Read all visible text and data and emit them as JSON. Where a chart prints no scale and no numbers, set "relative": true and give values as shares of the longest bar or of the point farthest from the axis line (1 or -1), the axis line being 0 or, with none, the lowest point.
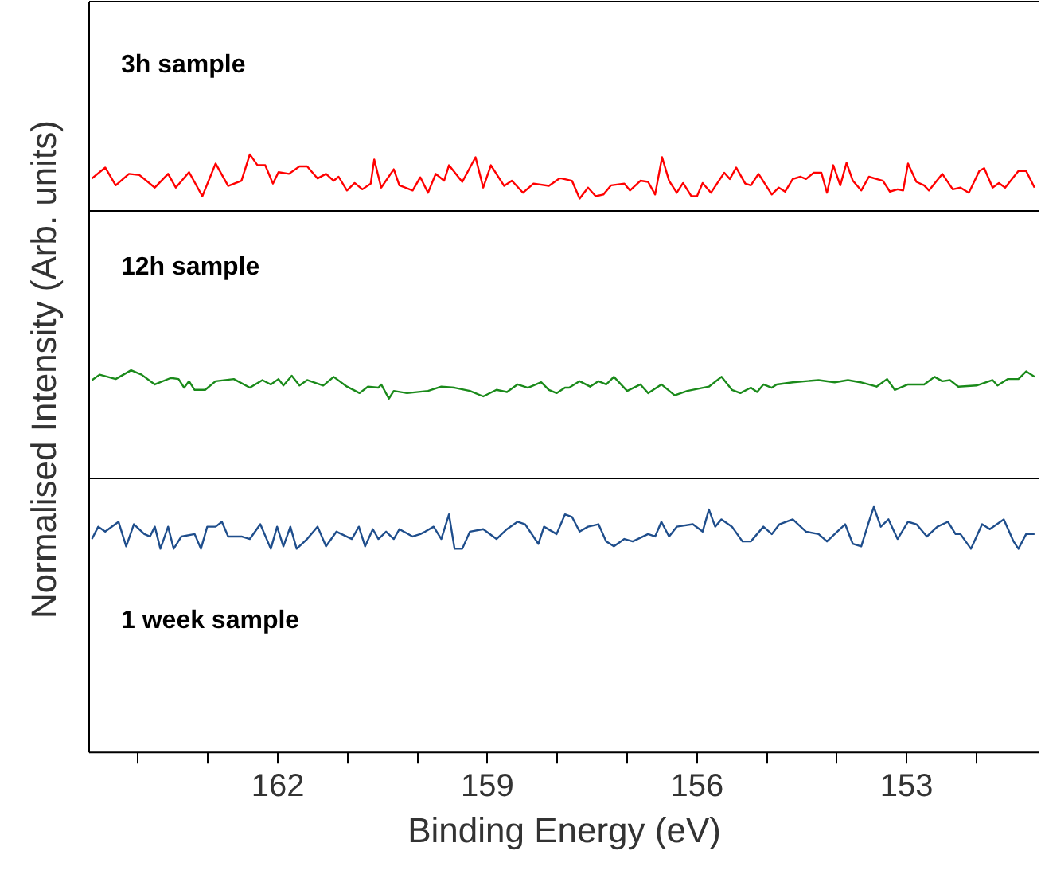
{
  "chart_data": [
    {
      "type": "line",
      "relative": true,
      "tick_labels": false,
      "ylabel": "Normalised Intensity (Arb. units)",
      "xlim": [
        164.7,
        151.1
      ],
      "series": [
        {
          "name": "3h sample",
          "color": "#ff0000",
          "x": [
            164.66,
            164.47,
            164.32,
            164.13,
            163.98,
            163.76,
            163.57,
            163.46,
            163.27,
            163.08,
            162.89,
            162.71,
            162.52,
            162.4,
            162.29,
            162.18,
            162.07,
            161.99,
            161.84,
            161.69,
            161.58,
            161.43,
            161.31,
            161.2,
            161.13,
            161.01,
            160.9,
            160.79,
            160.67,
            160.62,
            160.52,
            160.34,
            160.26,
            160.07,
            159.96,
            159.85,
            159.74,
            159.62,
            159.55,
            159.36,
            159.17,
            159.06,
            158.95,
            158.76,
            158.65,
            158.49,
            158.34,
            158.12,
            157.97,
            157.94,
            157.79,
            157.68,
            157.56,
            157.45,
            157.34,
            157.23,
            157.04,
            156.96,
            156.81,
            156.7,
            156.6,
            156.5,
            156.4,
            156.29,
            156.2,
            156.08,
            156.0,
            155.92,
            155.8,
            155.61,
            155.53,
            155.44,
            155.31,
            155.23,
            155.12,
            154.93,
            154.83,
            154.74,
            154.63,
            154.52,
            154.44,
            154.33,
            154.22,
            154.14,
            154.05,
            153.95,
            153.86,
            153.77,
            153.65,
            153.54,
            153.43,
            153.34,
            153.24,
            153.13,
            153.05,
            152.98,
            152.86,
            152.75,
            152.68,
            152.49,
            152.34,
            152.23,
            152.11,
            151.96,
            151.89,
            151.77,
            151.68,
            151.59,
            151.4,
            151.29,
            151.17
          ],
          "values": [
            0.58,
            0.77,
            0.46,
            0.66,
            0.64,
            0.42,
            0.66,
            0.42,
            0.69,
            0.27,
            0.84,
            0.45,
            0.54,
            1,
            0.81,
            0.81,
            0.49,
            0.69,
            0.66,
            0.79,
            0.79,
            0.58,
            0.66,
            0.54,
            0.61,
            0.37,
            0.5,
            0.39,
            0.49,
            0.91,
            0.42,
            0.74,
            0.46,
            0.37,
            0.6,
            0.33,
            0.66,
            0.54,
            0.81,
            0.52,
            0.95,
            0.42,
            0.81,
            0.45,
            0.54,
            0.33,
            0.49,
            0.45,
            0.58,
            0.58,
            0.54,
            0.23,
            0.42,
            0.27,
            0.3,
            0.46,
            0.49,
            0.37,
            0.54,
            0.52,
            0.3,
            0.95,
            0.54,
            0.33,
            0.5,
            0.27,
            0.27,
            0.5,
            0.33,
            0.68,
            0.57,
            0.77,
            0.49,
            0.46,
            0.66,
            0.3,
            0.42,
            0.35,
            0.57,
            0.61,
            0.57,
            0.68,
            0.68,
            0.33,
            0.81,
            0.46,
            0.85,
            0.54,
            0.37,
            0.61,
            0.57,
            0.54,
            0.35,
            0.39,
            0.37,
            0.84,
            0.52,
            0.46,
            0.37,
            0.66,
            0.39,
            0.42,
            0.33,
            0.71,
            0.76,
            0.42,
            0.5,
            0.42,
            0.71,
            0.71,
            0.42
          ]
        }
      ]
    },
    {
      "type": "line",
      "relative": true,
      "tick_labels": false,
      "xlim": [
        164.7,
        151.1
      ],
      "series": [
        {
          "name": "12h sample",
          "color": "#1a8a1a",
          "x": [
            164.66,
            164.55,
            164.32,
            164.1,
            163.95,
            163.76,
            163.53,
            163.42,
            163.34,
            163.27,
            163.19,
            163.04,
            162.89,
            162.63,
            162.4,
            162.22,
            162.1,
            161.99,
            161.92,
            161.8,
            161.69,
            161.58,
            161.35,
            161.2,
            161.01,
            160.83,
            160.71,
            160.56,
            160.52,
            160.41,
            160.34,
            160.15,
            159.85,
            159.66,
            159.47,
            159.25,
            159.06,
            158.87,
            158.72,
            158.57,
            158.42,
            158.23,
            158.12,
            158.01,
            157.89,
            157.83,
            157.68,
            157.53,
            157.41,
            157.3,
            157.19,
            157.0,
            156.81,
            156.7,
            156.51,
            156.32,
            156.14,
            155.83,
            155.65,
            155.5,
            155.38,
            155.23,
            155.14,
            155.05,
            154.93,
            154.86,
            154.63,
            154.26,
            154.03,
            153.84,
            153.66,
            153.43,
            153.28,
            153.17,
            152.98,
            152.75,
            152.6,
            152.49,
            152.38,
            152.26,
            152.0,
            151.77,
            151.7,
            151.55,
            151.4,
            151.29,
            151.17
          ],
          "values": [
            0.91,
            0.96,
            0.92,
            1,
            0.96,
            0.87,
            0.93,
            0.92,
            0.84,
            0.9,
            0.82,
            0.82,
            0.9,
            0.92,
            0.84,
            0.91,
            0.87,
            0.92,
            0.86,
            0.95,
            0.86,
            0.91,
            0.86,
            0.94,
            0.85,
            0.79,
            0.85,
            0.84,
            0.87,
            0.74,
            0.81,
            0.79,
            0.81,
            0.85,
            0.84,
            0.81,
            0.76,
            0.82,
            0.8,
            0.87,
            0.84,
            0.89,
            0.82,
            0.79,
            0.84,
            0.84,
            0.9,
            0.85,
            0.9,
            0.87,
            0.94,
            0.81,
            0.87,
            0.79,
            0.87,
            0.77,
            0.81,
            0.85,
            0.94,
            0.82,
            0.79,
            0.84,
            0.8,
            0.87,
            0.84,
            0.87,
            0.89,
            0.91,
            0.89,
            0.91,
            0.89,
            0.85,
            0.92,
            0.82,
            0.87,
            0.87,
            0.94,
            0.9,
            0.91,
            0.85,
            0.86,
            0.91,
            0.86,
            0.92,
            0.92,
            0.99,
            0.94
          ]
        }
      ]
    },
    {
      "type": "line",
      "relative": true,
      "tick_labels": "x",
      "xlabel": "Binding Energy (eV)",
      "xlim": [
        164.7,
        151.1
      ],
      "xticks": [
        {
          "value": 164,
          "label": null
        },
        {
          "value": 163,
          "label": null
        },
        162,
        {
          "value": 161,
          "label": null
        },
        {
          "value": 160,
          "label": null
        },
        159,
        {
          "value": 158,
          "label": null
        },
        {
          "value": 157,
          "label": null
        },
        156,
        {
          "value": 155,
          "label": null
        },
        {
          "value": 154,
          "label": null
        },
        153,
        {
          "value": 152,
          "label": null
        }
      ],
      "series": [
        {
          "name": "1 week sample",
          "color": "#1f4e8c",
          "x": [
            164.66,
            164.57,
            164.47,
            164.28,
            164.17,
            164.06,
            163.91,
            163.83,
            163.76,
            163.68,
            163.57,
            163.49,
            163.38,
            163.19,
            163.1,
            163.01,
            162.89,
            162.8,
            162.71,
            162.52,
            162.4,
            162.25,
            162.1,
            162.01,
            161.92,
            161.82,
            161.73,
            161.58,
            161.43,
            161.31,
            161.16,
            160.94,
            160.84,
            160.75,
            160.64,
            160.56,
            160.45,
            160.34,
            160.26,
            160.07,
            159.96,
            159.89,
            159.77,
            159.66,
            159.55,
            159.47,
            159.36,
            159.25,
            159.06,
            158.87,
            158.72,
            158.57,
            158.46,
            158.27,
            158.19,
            158.01,
            157.89,
            157.79,
            157.68,
            157.56,
            157.41,
            157.3,
            157.19,
            157.04,
            156.92,
            156.7,
            156.6,
            156.51,
            156.4,
            156.29,
            156.06,
            155.92,
            155.83,
            155.74,
            155.65,
            155.5,
            155.35,
            155.23,
            155.05,
            154.93,
            154.82,
            154.63,
            154.44,
            154.26,
            154.14,
            154.03,
            153.88,
            153.77,
            153.65,
            153.54,
            153.47,
            153.37,
            153.26,
            153.13,
            152.98,
            152.86,
            152.71,
            152.56,
            152.41,
            152.3,
            152.23,
            152.08,
            151.92,
            151.81,
            151.61,
            151.47,
            151.4,
            151.29,
            151.17
          ],
          "values": [
            0.87,
            0.92,
            0.9,
            0.94,
            0.84,
            0.93,
            0.89,
            0.88,
            0.92,
            0.83,
            0.92,
            0.83,
            0.88,
            0.89,
            0.83,
            0.92,
            0.92,
            0.94,
            0.88,
            0.88,
            0.87,
            0.93,
            0.83,
            0.92,
            0.84,
            0.92,
            0.83,
            0.87,
            0.92,
            0.84,
            0.9,
            0.87,
            0.92,
            0.84,
            0.91,
            0.87,
            0.9,
            0.87,
            0.91,
            0.88,
            0.89,
            0.9,
            0.92,
            0.87,
            0.97,
            0.83,
            0.83,
            0.9,
            0.91,
            0.87,
            0.91,
            0.94,
            0.93,
            0.85,
            0.92,
            0.89,
            0.97,
            0.96,
            0.9,
            0.92,
            0.93,
            0.86,
            0.84,
            0.87,
            0.86,
            0.89,
            0.88,
            0.94,
            0.88,
            0.92,
            0.93,
            0.9,
            0.99,
            0.92,
            0.95,
            0.92,
            0.86,
            0.86,
            0.92,
            0.89,
            0.93,
            0.95,
            0.9,
            0.89,
            0.86,
            0.89,
            0.93,
            0.85,
            0.84,
            0.94,
            1,
            0.92,
            0.95,
            0.87,
            0.94,
            0.93,
            0.88,
            0.92,
            0.94,
            0.89,
            0.89,
            0.83,
            0.93,
            0.91,
            0.95,
            0.86,
            0.83,
            0.89,
            0.89
          ]
        }
      ]
    }
  ]
}
